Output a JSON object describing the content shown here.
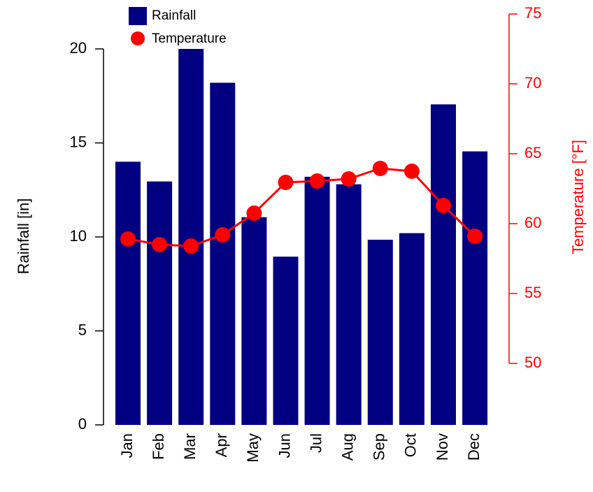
{
  "chart_data": {
    "type": "bar",
    "categories": [
      "Jan",
      "Feb",
      "Mar",
      "Apr",
      "May",
      "Jun",
      "Jul",
      "Aug",
      "Sep",
      "Oct",
      "Nov",
      "Dec"
    ],
    "series": [
      {
        "name": "Rainfall",
        "color": "#000080",
        "values": [
          14,
          12.95,
          20,
          18.2,
          11.05,
          8.95,
          13.2,
          12.8,
          9.85,
          10.2,
          17.05,
          14.55
        ]
      },
      {
        "name": "Temperature",
        "color": "#ff0000",
        "type": "line",
        "axis": "y2",
        "values": [
          58.9,
          58.5,
          58.4,
          59.2,
          60.75,
          62.95,
          63.05,
          63.2,
          63.95,
          63.75,
          61.3,
          59.1
        ]
      }
    ],
    "ylabel": "Rainfall [in]",
    "y2label": "Temperature [°F]",
    "ylim": [
      0,
      20
    ],
    "yticks": [
      0,
      5,
      10,
      15,
      20
    ],
    "y2lim": [
      50,
      75
    ],
    "y2ticks": [
      50,
      55,
      60,
      65,
      70,
      75
    ],
    "legend": "top-left"
  }
}
